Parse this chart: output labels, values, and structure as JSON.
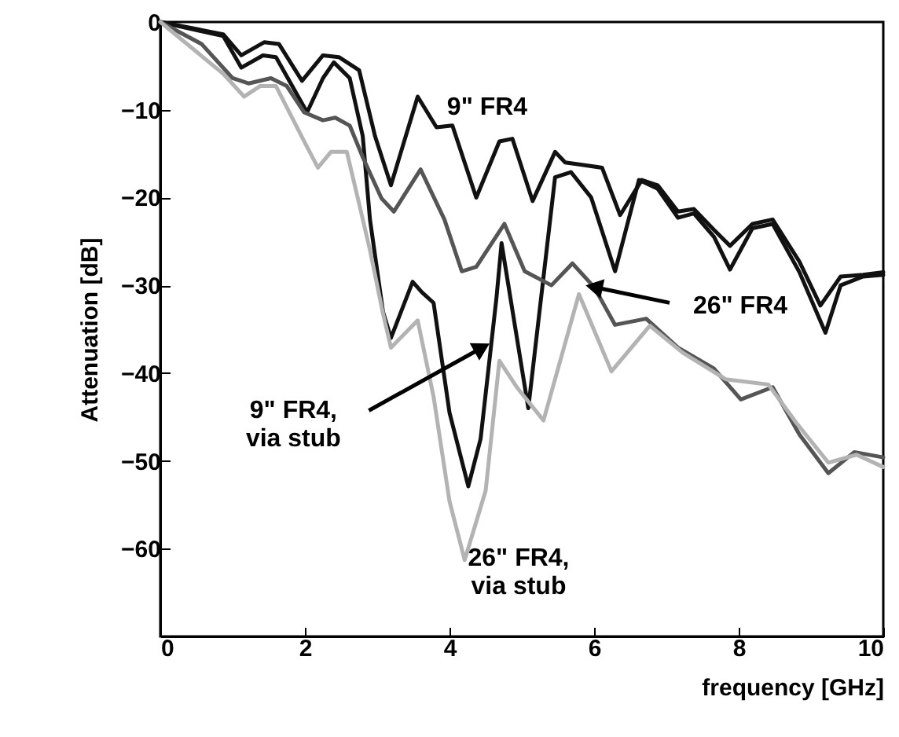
{
  "chart_data": {
    "type": "line",
    "xlabel": "frequency [GHz]",
    "ylabel": "Attenuation [dB]",
    "xlim": [
      0,
      10
    ],
    "ylim": [
      -70,
      0
    ],
    "xticks": [
      0,
      2,
      4,
      6,
      8,
      10
    ],
    "yticks": [
      0,
      -10,
      -20,
      -30,
      -40,
      -50,
      -60
    ],
    "grid": false,
    "series": [
      {
        "color": "#111111",
        "x": [
          0,
          0.87,
          1.12,
          1.44,
          1.64,
          1.96,
          2.25,
          2.47,
          2.75,
          2.97,
          3.19,
          3.56,
          3.82,
          4.04,
          4.37,
          4.69,
          4.87,
          5.15,
          5.46,
          5.6,
          5.85,
          6.11,
          6.36,
          6.66,
          6.88,
          7.16,
          7.38,
          7.66,
          7.88,
          8.19,
          8.47,
          8.84,
          9.13,
          9.41,
          9.72,
          10
        ],
        "values": [
          0,
          -1.4,
          -3.8,
          -2.3,
          -2.5,
          -6.7,
          -3.8,
          -4,
          -5.5,
          -13,
          -18.6,
          -8.5,
          -12,
          -11.8,
          -20,
          -13.6,
          -13.3,
          -20.4,
          -14.8,
          -16,
          -16.3,
          -16.6,
          -22,
          -18,
          -18.6,
          -21.6,
          -21.3,
          -23.7,
          -25.5,
          -23,
          -22.5,
          -27.3,
          -32.3,
          -29,
          -28.8,
          -28.5
        ]
      },
      {
        "color": "#111111",
        "x": [
          0,
          0.87,
          1.12,
          1.42,
          1.6,
          2.03,
          2.25,
          2.4,
          2.62,
          2.8,
          2.9,
          3.08,
          3.19,
          3.49,
          3.62,
          3.78,
          4.0,
          4.26,
          4.43,
          4.65,
          4.72,
          5.09,
          5.46,
          5.68,
          5.96,
          6.29,
          6.62,
          6.88,
          7.16,
          7.38,
          7.66,
          7.88,
          8.19,
          8.47,
          8.84,
          9.2,
          9.41,
          9.72,
          10
        ],
        "values": [
          0,
          -1.6,
          -5.2,
          -3.8,
          -4,
          -10.3,
          -6.4,
          -4.6,
          -6.4,
          -13,
          -22.5,
          -33,
          -36,
          -29.6,
          -30.8,
          -32,
          -44.5,
          -52.9,
          -47.5,
          -31.4,
          -25.2,
          -44,
          -17.7,
          -17.1,
          -20,
          -28.4,
          -18,
          -19,
          -22.3,
          -21.8,
          -24.5,
          -28.2,
          -23.5,
          -23,
          -28.5,
          -35.4,
          -30,
          -29,
          -28.8
        ]
      },
      {
        "color": "#555555",
        "x": [
          0,
          0.57,
          1.0,
          1.22,
          1.53,
          1.75,
          1.99,
          2.25,
          2.42,
          2.62,
          2.8,
          3.06,
          3.23,
          3.6,
          3.93,
          4.17,
          4.37,
          4.76,
          5.04,
          5.41,
          5.7,
          6.0,
          6.29,
          6.72,
          7.16,
          7.66,
          8.03,
          8.47,
          8.84,
          9.24,
          9.6,
          10
        ],
        "values": [
          0,
          -2.5,
          -6.4,
          -7,
          -6.4,
          -7.3,
          -10.3,
          -11.2,
          -10.9,
          -11.8,
          -15.4,
          -20.1,
          -21.6,
          -16.8,
          -22.5,
          -28.4,
          -27.9,
          -23,
          -28.4,
          -30,
          -27.5,
          -30.2,
          -34.5,
          -33.8,
          -37.1,
          -39.5,
          -43,
          -41.6,
          -47,
          -51.4,
          -49,
          -49.6
        ]
      },
      {
        "color": "#b3b3b3",
        "x": [
          0,
          0.87,
          1.16,
          1.38,
          1.6,
          1.99,
          2.18,
          2.36,
          2.58,
          2.75,
          2.9,
          3.08,
          3.19,
          3.56,
          3.78,
          4.0,
          4.21,
          4.5,
          4.69,
          4.93,
          5.3,
          5.79,
          6.24,
          6.77,
          7.23,
          7.82,
          8.41,
          8.8,
          9.24,
          9.63,
          10
        ],
        "values": [
          0,
          -5.9,
          -8.5,
          -7.3,
          -7.3,
          -13.6,
          -16.6,
          -14.8,
          -14.8,
          -20.7,
          -26,
          -33.2,
          -37.1,
          -34,
          -42.7,
          -54.6,
          -61.3,
          -53.4,
          -38.6,
          -41.6,
          -45.4,
          -31,
          -39.8,
          -34.6,
          -37.7,
          -40.7,
          -41.3,
          -45.7,
          -50.2,
          -49.3,
          -50.7
        ]
      }
    ],
    "annotations": [
      "9\" FR4",
      {
        "text": "26\" FR4",
        "x": 6.0,
        "y": -30.2
      },
      {
        "text": "9\" FR4,\nvia stub",
        "x": 4.45,
        "y": -37.1
      },
      "26\" FR4,\nvia stub"
    ]
  }
}
